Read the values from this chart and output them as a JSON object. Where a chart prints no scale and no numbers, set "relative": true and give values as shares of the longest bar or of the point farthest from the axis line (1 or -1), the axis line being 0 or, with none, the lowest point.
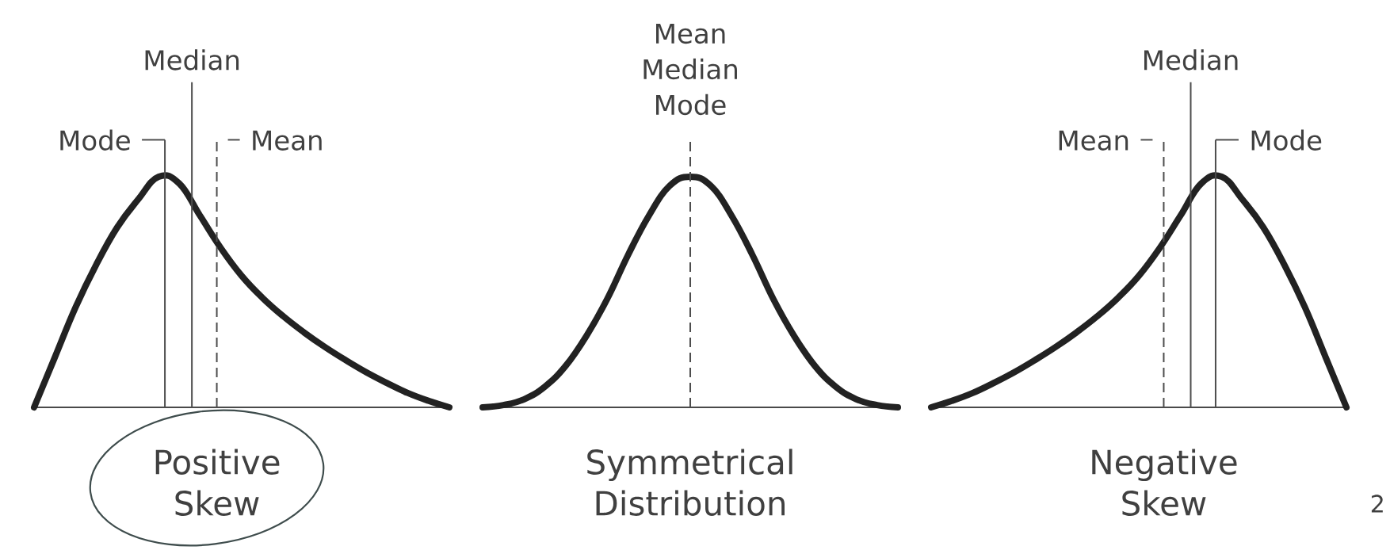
{
  "chart_data": [
    {
      "type": "line",
      "relative": true,
      "xlabel": "Positive Skew",
      "categories": [
        null,
        null,
        null,
        null,
        null,
        null,
        null,
        null,
        null,
        null,
        null,
        null,
        null,
        null,
        null,
        null,
        null,
        null,
        null,
        null,
        null
      ],
      "series": [
        {
          "color": "#222222",
          "values": [
            0,
            0.217,
            0.434,
            0.62,
            0.78,
            0.9,
            1,
            0.97,
            0.83,
            0.69,
            0.57,
            0.475,
            0.395,
            0.325,
            0.262,
            0.205,
            0.152,
            0.105,
            0.062,
            0.028,
            0
          ]
        }
      ],
      "annotations": [
        "Mode",
        "Median",
        "Mean"
      ]
    },
    {
      "type": "line",
      "relative": true,
      "xlabel": "Symmetrical Distribution",
      "categories": [
        null,
        null,
        null,
        null,
        null,
        null,
        null,
        null,
        null,
        null,
        null,
        null,
        null,
        null,
        null,
        null,
        null,
        null,
        null,
        null,
        null
      ],
      "series": [
        {
          "color": "#222222",
          "values": [
            0,
            0.01,
            0.035,
            0.09,
            0.18,
            0.31,
            0.47,
            0.66,
            0.83,
            0.96,
            1,
            0.96,
            0.83,
            0.66,
            0.47,
            0.31,
            0.18,
            0.09,
            0.035,
            0.01,
            0
          ]
        }
      ],
      "annotations": [
        "Mean Median Mode"
      ]
    },
    {
      "type": "line",
      "relative": true,
      "xlabel": "Negative Skew",
      "categories": [
        null,
        null,
        null,
        null,
        null,
        null,
        null,
        null,
        null,
        null,
        null,
        null,
        null,
        null,
        null,
        null,
        null,
        null,
        null,
        null,
        null
      ],
      "series": [
        {
          "color": "#222222",
          "values": [
            0,
            0.028,
            0.062,
            0.105,
            0.152,
            0.205,
            0.262,
            0.325,
            0.395,
            0.475,
            0.57,
            0.69,
            0.83,
            0.97,
            1,
            0.9,
            0.78,
            0.62,
            0.434,
            0.217,
            0
          ]
        }
      ],
      "annotations": [
        "Mean",
        "Median",
        "Mode",
        "2"
      ]
    }
  ]
}
